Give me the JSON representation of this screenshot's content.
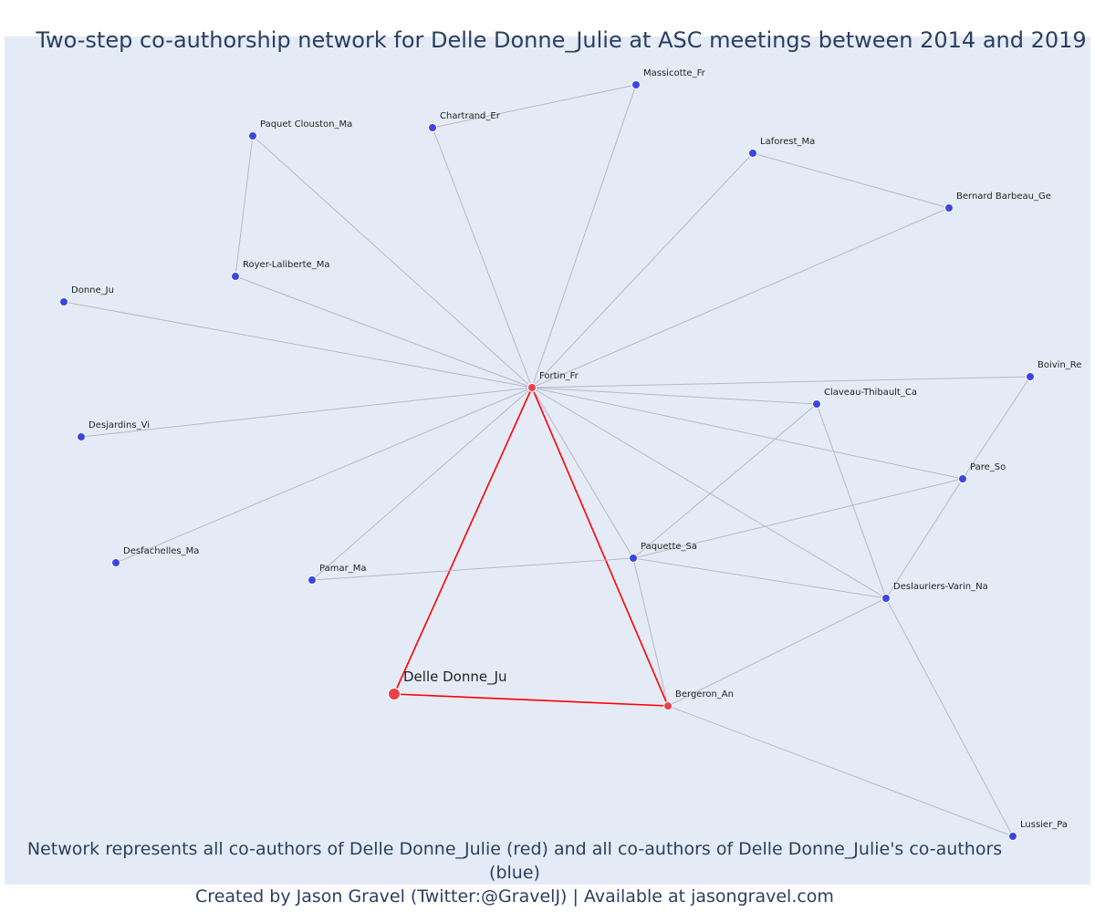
{
  "title": "Two-step co-authorship network for Delle Donne_Julie at ASC meetings between 2014 and 2019",
  "caption_line1": "Network represents all co-authors of Delle Donne_Julie (red) and all co-authors of Delle Donne_Julie's co-authors (blue)",
  "caption_line2": "Created by Jason Gravel (Twitter:@GravelJ) | Available at jasongravel.com",
  "colors": {
    "background": "#e5ebf6",
    "edge": "#b4b7c8",
    "ego_edge": "#ff0000",
    "coauthor_node": "#ef3f4a",
    "second_step_node": "#3b45e6",
    "title_text": "#2a3f5f"
  },
  "chart_data": {
    "type": "network",
    "nodes": [
      {
        "id": "Delle Donne_Ju",
        "group": "ego"
      },
      {
        "id": "Fortin_Fr",
        "group": "coauthor"
      },
      {
        "id": "Bergeron_An",
        "group": "coauthor"
      },
      {
        "id": "Massicotte_Fr",
        "group": "second-step"
      },
      {
        "id": "Chartrand_Er",
        "group": "second-step"
      },
      {
        "id": "Paquet Clouston_Ma",
        "group": "second-step"
      },
      {
        "id": "Laforest_Ma",
        "group": "second-step"
      },
      {
        "id": "Bernard Barbeau_Ge",
        "group": "second-step"
      },
      {
        "id": "Royer-Laliberte_Ma",
        "group": "second-step"
      },
      {
        "id": "Donne_Ju",
        "group": "second-step"
      },
      {
        "id": "Boivin_Re",
        "group": "second-step"
      },
      {
        "id": "Claveau-Thibault_Ca",
        "group": "second-step"
      },
      {
        "id": "Desjardins_Vi",
        "group": "second-step"
      },
      {
        "id": "Pare_So",
        "group": "second-step"
      },
      {
        "id": "Desfachelles_Ma",
        "group": "second-step"
      },
      {
        "id": "Paquette_Sa",
        "group": "second-step"
      },
      {
        "id": "Pamar_Ma",
        "group": "second-step"
      },
      {
        "id": "Deslauriers-Varin_Na",
        "group": "second-step"
      },
      {
        "id": "Lussier_Pa",
        "group": "second-step"
      }
    ],
    "edges": [
      [
        "Delle Donne_Ju",
        "Fortin_Fr"
      ],
      [
        "Delle Donne_Ju",
        "Bergeron_An"
      ],
      [
        "Fortin_Fr",
        "Bergeron_An"
      ],
      [
        "Fortin_Fr",
        "Massicotte_Fr"
      ],
      [
        "Fortin_Fr",
        "Chartrand_Er"
      ],
      [
        "Fortin_Fr",
        "Paquet Clouston_Ma"
      ],
      [
        "Fortin_Fr",
        "Laforest_Ma"
      ],
      [
        "Fortin_Fr",
        "Bernard Barbeau_Ge"
      ],
      [
        "Fortin_Fr",
        "Royer-Laliberte_Ma"
      ],
      [
        "Fortin_Fr",
        "Donne_Ju"
      ],
      [
        "Fortin_Fr",
        "Boivin_Re"
      ],
      [
        "Fortin_Fr",
        "Claveau-Thibault_Ca"
      ],
      [
        "Fortin_Fr",
        "Desjardins_Vi"
      ],
      [
        "Fortin_Fr",
        "Pare_So"
      ],
      [
        "Fortin_Fr",
        "Desfachelles_Ma"
      ],
      [
        "Fortin_Fr",
        "Paquette_Sa"
      ],
      [
        "Fortin_Fr",
        "Pamar_Ma"
      ],
      [
        "Fortin_Fr",
        "Deslauriers-Varin_Na"
      ],
      [
        "Chartrand_Er",
        "Massicotte_Fr"
      ],
      [
        "Paquet Clouston_Ma",
        "Royer-Laliberte_Ma"
      ],
      [
        "Laforest_Ma",
        "Bernard Barbeau_Ge"
      ],
      [
        "Boivin_Re",
        "Pare_So"
      ],
      [
        "Claveau-Thibault_Ca",
        "Paquette_Sa"
      ],
      [
        "Claveau-Thibault_Ca",
        "Deslauriers-Varin_Na"
      ],
      [
        "Pare_So",
        "Paquette_Sa"
      ],
      [
        "Pare_So",
        "Deslauriers-Varin_Na"
      ],
      [
        "Pamar_Ma",
        "Paquette_Sa"
      ],
      [
        "Paquette_Sa",
        "Deslauriers-Varin_Na"
      ],
      [
        "Paquette_Sa",
        "Bergeron_An"
      ],
      [
        "Bergeron_An",
        "Deslauriers-Varin_Na"
      ],
      [
        "Bergeron_An",
        "Lussier_Pa"
      ],
      [
        "Deslauriers-Varin_Na",
        "Lussier_Pa"
      ]
    ]
  }
}
